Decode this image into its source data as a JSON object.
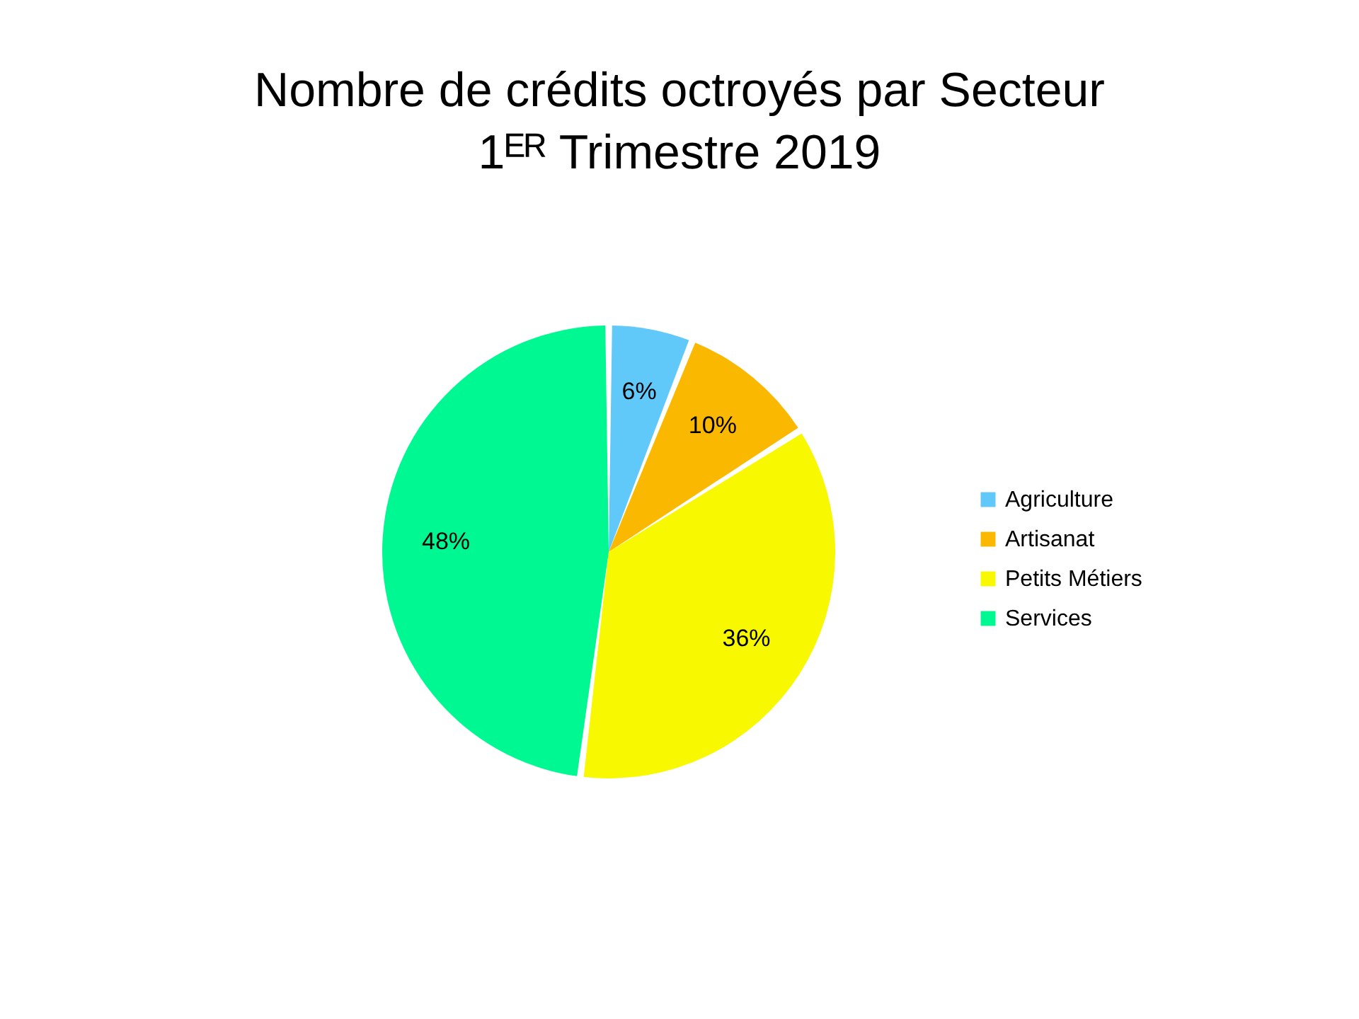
{
  "chart_data": {
    "type": "pie",
    "title": "Nombre de crédits octroyés par Secteur",
    "subtitle": "1ᴱᴿ Trimestre 2019",
    "categories": [
      "Agriculture",
      "Artisanat",
      "Petits Métiers",
      "Services"
    ],
    "values": [
      6,
      10,
      36,
      48
    ],
    "colors": [
      "#61c8fa",
      "#fab800",
      "#f8f800",
      "#00f892"
    ],
    "value_labels": [
      "6%",
      "10%",
      "36%",
      "48%"
    ],
    "legend": "right"
  }
}
